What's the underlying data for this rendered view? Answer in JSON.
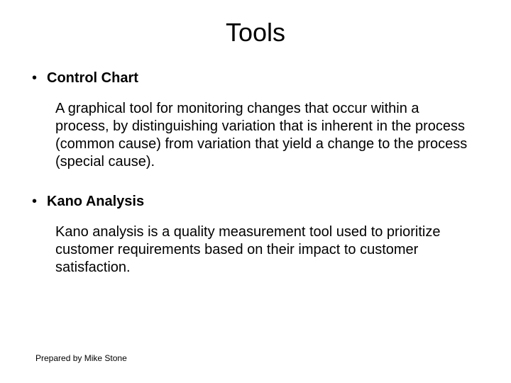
{
  "title": "Tools",
  "items": [
    {
      "heading": "Control Chart",
      "body": "A graphical tool for monitoring changes that occur within a process, by distinguishing variation that is inherent in the process (common cause) from variation that yield a change to the process (special cause)."
    },
    {
      "heading": "Kano Analysis",
      "body": "Kano analysis is a quality measurement tool used to prioritize customer requirements based on their impact to customer satisfaction."
    }
  ],
  "footer": "Prepared by Mike Stone",
  "bullet_char": "•"
}
